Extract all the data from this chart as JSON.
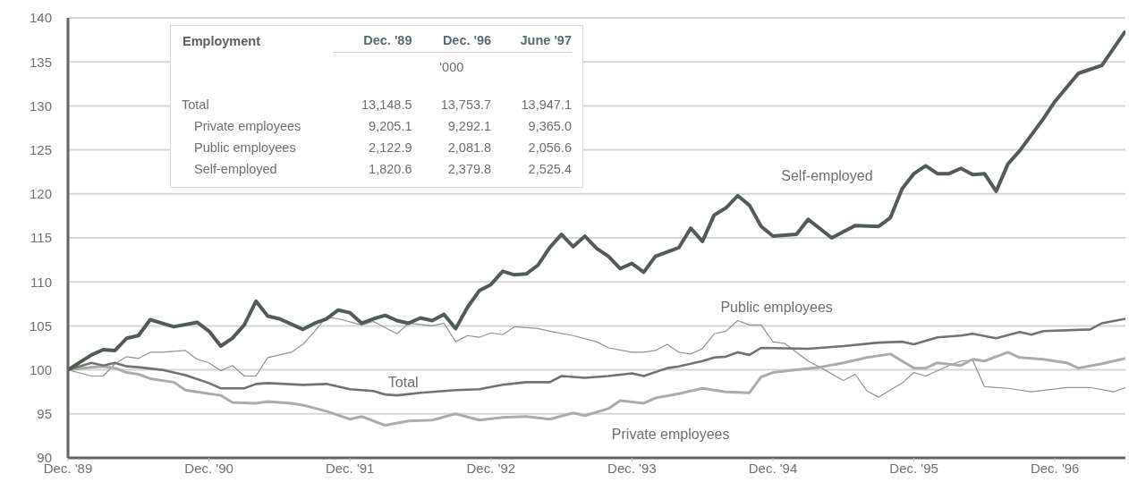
{
  "chart_data": [
    {
      "type": "line",
      "ylim": [
        90,
        140
      ],
      "yticks": [
        90,
        95,
        100,
        105,
        110,
        115,
        120,
        125,
        130,
        135,
        140
      ],
      "xlim": [
        "1989-12",
        "1997-06"
      ],
      "xticks": [
        {
          "value": "1989-12",
          "label": "Dec. '89"
        },
        {
          "value": "1990-12",
          "label": "Dec. '90"
        },
        {
          "value": "1991-12",
          "label": "Dec. '91"
        },
        {
          "value": "1992-12",
          "label": "Dec. '92"
        },
        {
          "value": "1993-12",
          "label": "Dec. '93"
        },
        {
          "value": "1994-12",
          "label": "Dec. '94"
        },
        {
          "value": "1995-12",
          "label": "Dec. '95"
        },
        {
          "value": "1996-12",
          "label": "Dec. '96"
        }
      ],
      "grid": "y",
      "legend": false,
      "marker": "none",
      "series": [
        {
          "name": "Public employees",
          "color": "#8f938e",
          "x": [
            "1989-12",
            "1990-02",
            "1990-03",
            "1990-04",
            "1990-05",
            "1990-06",
            "1990-07",
            "1990-08",
            "1990-10",
            "1990-11",
            "1990-12",
            "1991-01",
            "1991-02",
            "1991-03",
            "1991-04",
            "1991-05",
            "1991-07",
            "1991-08",
            "1991-09",
            "1991-10",
            "1991-11",
            "1992-01",
            "1992-02",
            "1992-04",
            "1992-05",
            "1992-07",
            "1992-08",
            "1992-09",
            "1992-10",
            "1992-11",
            "1992-12",
            "1993-01",
            "1993-02",
            "1993-04",
            "1993-05",
            "1993-07",
            "1993-09",
            "1993-10",
            "1993-12",
            "1994-01",
            "1994-02",
            "1994-03",
            "1994-04",
            "1994-05",
            "1994-06",
            "1994-07",
            "1994-08",
            "1994-09",
            "1994-10",
            "1994-11",
            "1994-12",
            "1995-01",
            "1995-03",
            "1995-04",
            "1995-06",
            "1995-07",
            "1995-08",
            "1995-09",
            "1995-11",
            "1995-12",
            "1996-01",
            "1996-03",
            "1996-04",
            "1996-05",
            "1996-06",
            "1996-08",
            "1996-10",
            "1997-01",
            "1997-03",
            "1997-05",
            "1997-06"
          ],
          "values": [
            100,
            99.3,
            99.3,
            100.7,
            101.5,
            101.3,
            102,
            102,
            102.2,
            101.2,
            100.8,
            99.9,
            100.5,
            99.3,
            99.3,
            101.4,
            102,
            102.9,
            104.4,
            106,
            105.8,
            105.1,
            105.5,
            104.1,
            105.3,
            105,
            105.3,
            103.2,
            103.9,
            103.7,
            104.2,
            104,
            104.9,
            104.7,
            104.4,
            103.9,
            103.2,
            102.5,
            102,
            102,
            102.2,
            102.9,
            102,
            101.8,
            102.4,
            104.1,
            104.4,
            105.6,
            105.1,
            105.1,
            103.2,
            103,
            101,
            100.3,
            98.8,
            99.5,
            97.6,
            96.9,
            98.5,
            99.7,
            99.3,
            100.5,
            101,
            101.1,
            98.1,
            97.9,
            97.5,
            98,
            98,
            97.5,
            98
          ]
        },
        {
          "name": "Private employees",
          "color": "#a9aca7",
          "x": [
            "1989-12",
            "1990-02",
            "1990-03",
            "1990-04",
            "1990-05",
            "1990-06",
            "1990-07",
            "1990-09",
            "1990-10",
            "1990-12",
            "1991-01",
            "1991-02",
            "1991-04",
            "1991-05",
            "1991-07",
            "1991-08",
            "1991-10",
            "1991-12",
            "1992-01",
            "1992-03",
            "1992-05",
            "1992-07",
            "1992-09",
            "1992-11",
            "1993-01",
            "1993-03",
            "1993-05",
            "1993-07",
            "1993-08",
            "1993-10",
            "1993-11",
            "1994-01",
            "1994-02",
            "1994-04",
            "1994-06",
            "1994-08",
            "1994-10",
            "1994-11",
            "1994-12",
            "1995-02",
            "1995-04",
            "1995-06",
            "1995-08",
            "1995-10",
            "1995-11",
            "1995-12",
            "1996-01",
            "1996-02",
            "1996-04",
            "1996-05",
            "1996-06",
            "1996-08",
            "1996-09",
            "1996-11",
            "1997-01",
            "1997-02",
            "1997-04",
            "1997-06"
          ],
          "values": [
            100,
            100.3,
            100.4,
            100.2,
            99.7,
            99.5,
            99,
            98.6,
            97.7,
            97.3,
            97.1,
            96.3,
            96.2,
            96.4,
            96.2,
            96,
            95.3,
            94.4,
            94.7,
            93.7,
            94.2,
            94.3,
            95,
            94.3,
            94.6,
            94.7,
            94.4,
            95.1,
            94.8,
            95.6,
            96.5,
            96.2,
            96.8,
            97.3,
            97.9,
            97.5,
            97.4,
            99.2,
            99.7,
            100,
            100.3,
            100.8,
            101.4,
            101.8,
            101,
            100.2,
            100.2,
            100.8,
            100.5,
            101.2,
            101,
            102,
            101.4,
            101.2,
            100.8,
            100.2,
            100.7,
            101.3
          ]
        },
        {
          "name": "Total",
          "color": "#6e746e",
          "x": [
            "1989-12",
            "1990-02",
            "1990-03",
            "1990-04",
            "1990-05",
            "1990-06",
            "1990-08",
            "1990-10",
            "1990-12",
            "1991-01",
            "1991-03",
            "1991-04",
            "1991-05",
            "1991-08",
            "1991-10",
            "1991-12",
            "1992-02",
            "1992-03",
            "1992-04",
            "1992-06",
            "1992-09",
            "1992-11",
            "1993-01",
            "1993-03",
            "1993-05",
            "1993-06",
            "1993-08",
            "1993-10",
            "1993-12",
            "1994-01",
            "1994-03",
            "1994-04",
            "1994-06",
            "1994-07",
            "1994-08",
            "1994-09",
            "1994-10",
            "1994-11",
            "1995-03",
            "1995-06",
            "1995-09",
            "1995-11",
            "1995-12",
            "1996-02",
            "1996-04",
            "1996-05",
            "1996-07",
            "1996-09",
            "1996-10",
            "1996-11",
            "1997-03",
            "1997-04",
            "1997-06"
          ],
          "values": [
            100,
            100.8,
            100.5,
            100.8,
            100.4,
            100.3,
            100,
            99.4,
            98.5,
            97.9,
            97.9,
            98.4,
            98.5,
            98.3,
            98.4,
            97.8,
            97.6,
            97.2,
            97.1,
            97.4,
            97.7,
            97.8,
            98.3,
            98.6,
            98.6,
            99.3,
            99.1,
            99.3,
            99.6,
            99.3,
            100.2,
            100.4,
            101,
            101.4,
            101.5,
            102,
            101.7,
            102.5,
            102.4,
            102.7,
            103.1,
            103.2,
            102.9,
            103.7,
            103.9,
            104.1,
            103.6,
            104.3,
            104,
            104.4,
            104.6,
            105.3,
            105.8
          ]
        },
        {
          "name": "Self-employed",
          "color": "#525c55",
          "x": [
            "1989-12",
            "1990-02",
            "1990-03",
            "1990-04",
            "1990-05",
            "1990-06",
            "1990-07",
            "1990-08",
            "1990-09",
            "1990-11",
            "1990-12",
            "1991-01",
            "1991-02",
            "1991-03",
            "1991-04",
            "1991-05",
            "1991-06",
            "1991-08",
            "1991-09",
            "1991-10",
            "1991-11",
            "1991-12",
            "1992-01",
            "1992-02",
            "1992-03",
            "1992-04",
            "1992-05",
            "1992-06",
            "1992-07",
            "1992-08",
            "1992-09",
            "1992-10",
            "1992-11",
            "1992-12",
            "1993-01",
            "1993-02",
            "1993-03",
            "1993-04",
            "1993-05",
            "1993-06",
            "1993-07",
            "1993-08",
            "1993-09",
            "1993-10",
            "1993-11",
            "1993-12",
            "1994-01",
            "1994-02",
            "1994-04",
            "1994-05",
            "1994-06",
            "1994-07",
            "1994-08",
            "1994-09",
            "1994-10",
            "1994-11",
            "1994-12",
            "1995-02",
            "1995-03",
            "1995-05",
            "1995-07",
            "1995-09",
            "1995-10",
            "1995-11",
            "1995-12",
            "1996-01",
            "1996-02",
            "1996-03",
            "1996-04",
            "1996-05",
            "1996-06",
            "1996-07",
            "1996-08",
            "1996-09",
            "1996-11",
            "1996-12",
            "1997-02",
            "1997-04",
            "1997-06"
          ],
          "values": [
            100,
            101.7,
            102.3,
            102.2,
            103.6,
            103.9,
            105.7,
            105.3,
            104.9,
            105.4,
            104.4,
            102.7,
            103.6,
            105.1,
            107.8,
            106.1,
            105.8,
            104.6,
            105.3,
            105.8,
            106.8,
            106.5,
            105.3,
            105.8,
            106.2,
            105.6,
            105.3,
            105.9,
            105.6,
            106.3,
            104.7,
            107.1,
            109,
            109.7,
            111.2,
            110.8,
            110.9,
            111.9,
            113.9,
            115.4,
            114,
            115.2,
            113.8,
            112.9,
            111.5,
            112.1,
            111.1,
            112.9,
            113.9,
            116.1,
            114.6,
            117.6,
            118.4,
            119.8,
            118.7,
            116.3,
            115.2,
            115.4,
            117.1,
            115,
            116.4,
            116.3,
            117.3,
            120.6,
            122.3,
            123.2,
            122.3,
            122.3,
            122.9,
            122.2,
            122.3,
            120.3,
            123.4,
            124.9,
            128.5,
            130.5,
            133.7,
            134.6,
            138.5
          ]
        }
      ]
    },
    {
      "type": "other",
      "title": "Employment",
      "subtitle": "'000",
      "categories": [
        "Total",
        "Private employees",
        "Public employees",
        "Self-employed"
      ],
      "series": [
        {
          "name": "Dec. '89",
          "values": [
            13148.5,
            9205.1,
            2122.9,
            1820.6
          ],
          "value_labels": [
            "13,148.5",
            "9,205.1",
            "2,122.9",
            "1,820.6"
          ]
        },
        {
          "name": "Dec. '96",
          "values": [
            13753.7,
            9292.1,
            2081.8,
            2379.8
          ],
          "value_labels": [
            "13,753.7",
            "9,292.1",
            "2,081.8",
            "2,379.8"
          ]
        },
        {
          "name": "June '97",
          "values": [
            13947.1,
            9365.0,
            2056.6,
            2525.4
          ],
          "value_labels": [
            "13,947.1",
            "9,365.0",
            "2,056.6",
            "2,525.4"
          ]
        }
      ]
    }
  ]
}
